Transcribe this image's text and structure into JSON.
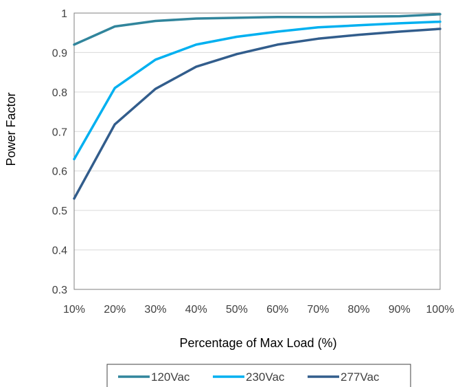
{
  "chart_data": {
    "type": "line",
    "title": "",
    "xlabel": "Percentage of Max Load (%)",
    "ylabel": "Power Factor",
    "x": [
      "10%",
      "20%",
      "30%",
      "40%",
      "50%",
      "60%",
      "70%",
      "80%",
      "90%",
      "100%"
    ],
    "ylim": [
      0.3,
      1
    ],
    "yticks": [
      "0.3",
      "0.4",
      "0.5",
      "0.6",
      "0.7",
      "0.8",
      "0.9",
      "1"
    ],
    "grid": true,
    "legend_position": "bottom",
    "series": [
      {
        "name": "120Vac",
        "color": "#31859c",
        "values": [
          0.92,
          0.966,
          0.98,
          0.986,
          0.988,
          0.99,
          0.99,
          0.991,
          0.992,
          0.997
        ]
      },
      {
        "name": "230Vac",
        "color": "#00b0f0",
        "values": [
          0.63,
          0.81,
          0.882,
          0.92,
          0.94,
          0.953,
          0.964,
          0.969,
          0.974,
          0.978
        ]
      },
      {
        "name": "277Vac",
        "color": "#325d8c",
        "values": [
          0.53,
          0.718,
          0.808,
          0.864,
          0.896,
          0.92,
          0.935,
          0.945,
          0.953,
          0.96
        ]
      }
    ]
  }
}
